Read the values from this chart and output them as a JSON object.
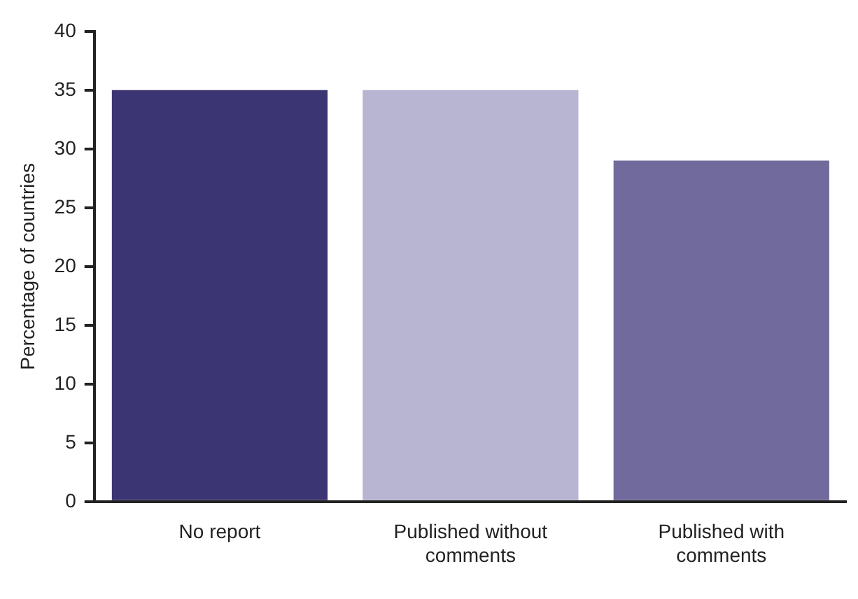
{
  "chart_data": {
    "type": "bar",
    "ylabel": "Percentage of countries",
    "categories": [
      "No report",
      "Published without comments",
      "Published with comments"
    ],
    "values": [
      35,
      35,
      29
    ],
    "colors": [
      "#3c3573",
      "#b8b5d3",
      "#716a9c"
    ],
    "ylim": [
      0,
      40
    ],
    "yticks": [
      0,
      5,
      10,
      15,
      20,
      25,
      30,
      35,
      40
    ],
    "grid": false,
    "legend": false
  }
}
